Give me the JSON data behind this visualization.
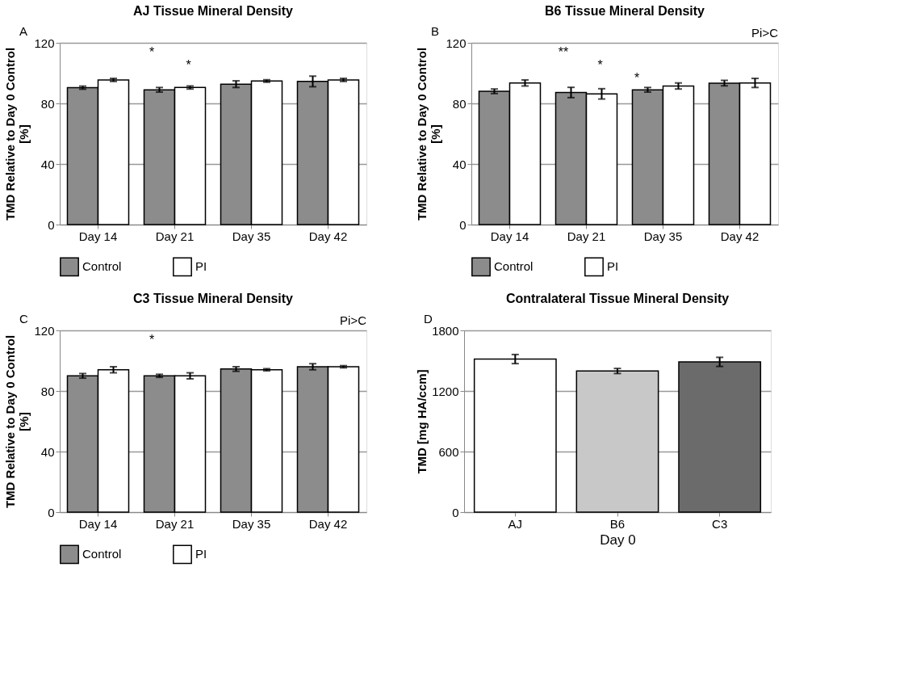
{
  "chart_data": [
    {
      "type": "bar",
      "title": "AJ Tissue Mineral Density",
      "ylabel": "TMD Relative to Day 0 Control\n[%]",
      "categories": [
        "Day 14",
        "Day 21",
        "Day 35",
        "Day 42"
      ],
      "ylim": [
        0,
        120
      ],
      "yticks": [
        0,
        40,
        80,
        120
      ],
      "grid": "y",
      "legend": "bottom",
      "series": [
        {
          "name": "Control",
          "color": "#8c8c8c",
          "values": [
            90.4,
            89,
            92.7,
            94.5
          ],
          "errors": [
            1,
            1.5,
            2.2,
            3.5
          ]
        },
        {
          "name": "PI",
          "color": "#ffffff",
          "values": [
            95.5,
            90.5,
            94.8,
            95.5
          ],
          "errors": [
            1,
            1,
            0.8,
            1
          ]
        }
      ],
      "annotations": [
        "A",
        "*",
        "*"
      ]
    },
    {
      "type": "bar",
      "title": "B6 Tissue Mineral Density",
      "subtitle": "Pi>C",
      "ylabel": "TMD Relative to Day 0 Control\n[%]",
      "categories": [
        "Day 14",
        "Day 21",
        "Day 35",
        "Day 42"
      ],
      "ylim": [
        0,
        120
      ],
      "yticks": [
        0,
        40,
        80,
        120
      ],
      "grid": "y",
      "legend": "bottom",
      "series": [
        {
          "name": "Control",
          "color": "#8c8c8c",
          "values": [
            88,
            87.2,
            89,
            93.4
          ],
          "errors": [
            1.5,
            3.4,
            1.5,
            1.8
          ]
        },
        {
          "name": "PI",
          "color": "#ffffff",
          "values": [
            93.5,
            86.3,
            91.5,
            93.5
          ],
          "errors": [
            2,
            3.4,
            2,
            3
          ]
        }
      ],
      "annotations": [
        "B",
        "**",
        "*",
        "*"
      ]
    },
    {
      "type": "bar",
      "title": "C3 Tissue Mineral Density",
      "subtitle": "Pi>C",
      "ylabel": "TMD Relative to Day 0 Control\n[%]",
      "categories": [
        "Day 14",
        "Day 21",
        "Day 35",
        "Day 42"
      ],
      "ylim": [
        0,
        120
      ],
      "yticks": [
        0,
        40,
        80,
        120
      ],
      "grid": "y",
      "legend": "bottom",
      "series": [
        {
          "name": "Control",
          "color": "#8c8c8c",
          "values": [
            90,
            90,
            94.5,
            96
          ],
          "errors": [
            1.5,
            1,
            1.5,
            2
          ]
        },
        {
          "name": "PI",
          "color": "#ffffff",
          "values": [
            94,
            90,
            94,
            96
          ],
          "errors": [
            2,
            2,
            0.7,
            0.7
          ]
        }
      ],
      "annotations": [
        "C",
        "*"
      ]
    },
    {
      "type": "bar",
      "title": "Contralateral Tissue Mineral Density",
      "ylabel": "TMD [mg HA/ccm]",
      "xlabel": "Day 0",
      "categories": [
        "AJ",
        "B6",
        "C3"
      ],
      "ylim": [
        0,
        1800
      ],
      "yticks": [
        0,
        600,
        1200,
        1800
      ],
      "grid": "y",
      "series": [
        {
          "colors": [
            "#ffffff",
            "#c8c8c8",
            "#6b6b6b"
          ],
          "values": [
            1516,
            1398,
            1488
          ],
          "errors": [
            45,
            25,
            45
          ]
        }
      ],
      "annotations": [
        "D"
      ]
    }
  ]
}
